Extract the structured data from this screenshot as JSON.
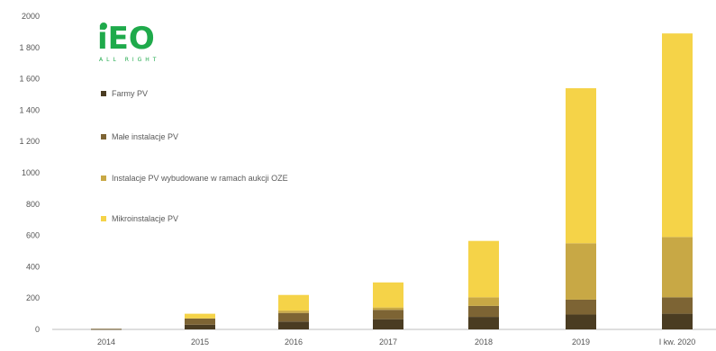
{
  "logo": {
    "main": "iEO",
    "sub": "ALL RIGHT"
  },
  "chart_data": {
    "type": "bar",
    "stacked": true,
    "categories": [
      "2014",
      "2015",
      "2016",
      "2017",
      "2018",
      "2019",
      "I kw. 2020"
    ],
    "series": [
      {
        "name": "Farmy PV",
        "color": "#4a3c22",
        "values": [
          2,
          30,
          50,
          65,
          80,
          95,
          100
        ]
      },
      {
        "name": "Małe instalacje PV",
        "color": "#7d6434",
        "values": [
          2,
          40,
          55,
          60,
          70,
          95,
          105
        ]
      },
      {
        "name": "Instalacje PV wybudowane w ramach aukcji OZE",
        "color": "#c8a845",
        "values": [
          0,
          0,
          15,
          15,
          55,
          360,
          385
        ]
      },
      {
        "name": "Mikroinstalacje PV",
        "color": "#f5d348",
        "values": [
          0,
          30,
          100,
          160,
          360,
          990,
          1300
        ]
      }
    ],
    "ylim": [
      0,
      2000
    ],
    "yticks": [
      0,
      200,
      400,
      600,
      800,
      1000,
      1200,
      1400,
      1600,
      1800,
      2000
    ],
    "ytick_labels": [
      "0",
      "200",
      "400",
      "600",
      "800",
      "1000",
      "1 200",
      "1 400",
      "1 600",
      "1 800",
      "2000"
    ],
    "grid": false,
    "legend_position": "top-left"
  }
}
